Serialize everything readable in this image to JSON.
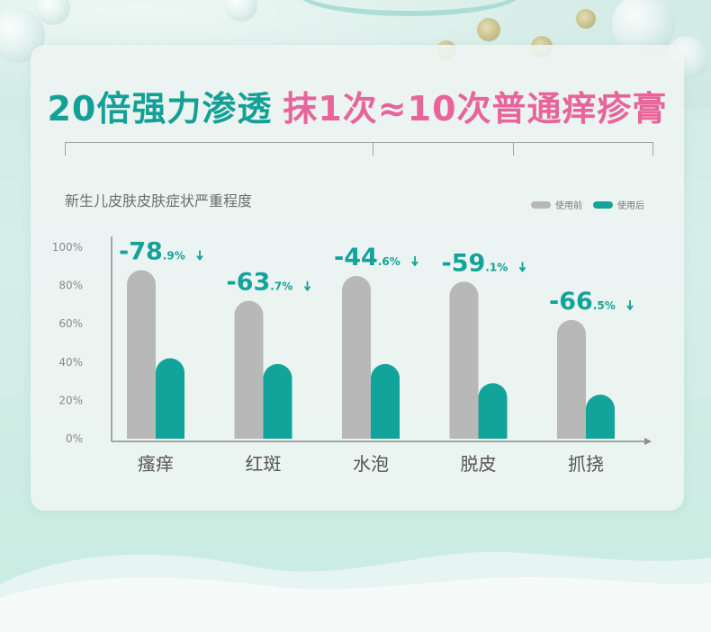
{
  "headline": {
    "part1": "20倍强力渗透",
    "part2": "抹1次≈10次普通痒疹膏"
  },
  "subtitle": "新生儿皮肤皮肤症状严重程度",
  "legend": {
    "before": "使用前",
    "after": "使用后"
  },
  "colors": {
    "before": "#b8b8b8",
    "after": "#12a39a",
    "headline_teal": "#15a097",
    "headline_pink": "#e8649a",
    "reduction": "#12a39a"
  },
  "chart_data": {
    "type": "bar",
    "categories": [
      "瘙痒",
      "红斑",
      "水泡",
      "脱皮",
      "抓挠"
    ],
    "series": [
      {
        "name": "使用前",
        "values": [
          88,
          72,
          85,
          82,
          62
        ]
      },
      {
        "name": "使用后",
        "values": [
          42,
          39,
          39,
          29,
          23
        ]
      }
    ],
    "reductions": [
      {
        "main": "-78",
        "decimal": ".9%"
      },
      {
        "main": "-63",
        "decimal": ".7%"
      },
      {
        "main": "-44",
        "decimal": ".6%"
      },
      {
        "main": "-59",
        "decimal": ".1%"
      },
      {
        "main": "-66",
        "decimal": ".5%"
      }
    ],
    "y_ticks": [
      "0%",
      "20%",
      "40%",
      "60%",
      "80%",
      "100%"
    ],
    "ylim": [
      0,
      100
    ],
    "legend_position": "top-right"
  }
}
